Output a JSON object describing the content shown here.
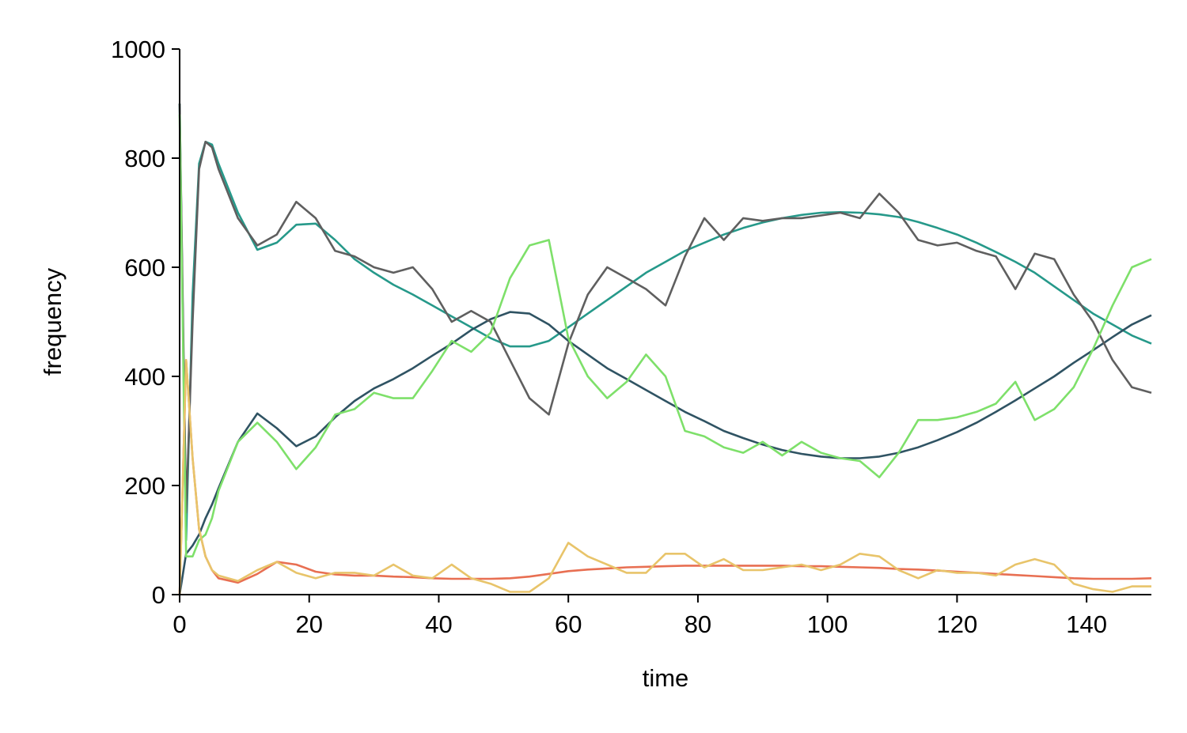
{
  "chart_data": {
    "type": "line",
    "xlabel": "time",
    "ylabel": "frequency",
    "x": [
      0,
      1,
      2,
      3,
      4,
      5,
      6,
      9,
      12,
      15,
      18,
      21,
      24,
      27,
      30,
      33,
      36,
      39,
      42,
      45,
      48,
      51,
      54,
      57,
      60,
      63,
      66,
      69,
      72,
      75,
      78,
      81,
      84,
      87,
      90,
      93,
      96,
      99,
      102,
      105,
      108,
      111,
      114,
      117,
      120,
      123,
      126,
      129,
      132,
      135,
      138,
      141,
      144,
      147,
      150
    ],
    "series": [
      {
        "color": "#26998a",
        "values": [
          900,
          100,
          550,
          790,
          830,
          825,
          790,
          700,
          632,
          645,
          678,
          680,
          650,
          615,
          590,
          568,
          550,
          530,
          510,
          490,
          470,
          455,
          455,
          465,
          490,
          515,
          540,
          565,
          590,
          610,
          630,
          645,
          660,
          672,
          682,
          690,
          696,
          700,
          701,
          700,
          697,
          692,
          683,
          672,
          660,
          645,
          628,
          610,
          590,
          565,
          540,
          515,
          495,
          475,
          460
        ]
      },
      {
        "color": "#2f5363",
        "values": [
          0,
          75,
          90,
          110,
          140,
          165,
          195,
          280,
          332,
          305,
          272,
          290,
          325,
          355,
          378,
          395,
          415,
          438,
          460,
          485,
          505,
          518,
          515,
          495,
          465,
          440,
          415,
          395,
          375,
          355,
          335,
          318,
          300,
          287,
          275,
          265,
          258,
          253,
          250,
          250,
          253,
          260,
          270,
          283,
          298,
          315,
          335,
          356,
          378,
          400,
          425,
          448,
          472,
          495,
          512
        ]
      },
      {
        "color": "#e86f52",
        "values": [
          0,
          430,
          250,
          120,
          70,
          45,
          30,
          22,
          38,
          60,
          55,
          42,
          37,
          35,
          35,
          33,
          32,
          30,
          29,
          29,
          29,
          30,
          33,
          38,
          43,
          46,
          48,
          50,
          51,
          52,
          53,
          53,
          53,
          53,
          53,
          53,
          52,
          52,
          51,
          50,
          49,
          47,
          46,
          44,
          42,
          40,
          38,
          36,
          34,
          32,
          30,
          29,
          29,
          29,
          30
        ]
      },
      {
        "color": "#5f5f5f",
        "values": [
          900,
          150,
          500,
          780,
          830,
          820,
          780,
          690,
          640,
          660,
          720,
          690,
          630,
          620,
          600,
          590,
          600,
          560,
          500,
          520,
          500,
          430,
          360,
          330,
          460,
          550,
          600,
          580,
          560,
          530,
          620,
          690,
          650,
          690,
          685,
          690,
          690,
          695,
          700,
          690,
          735,
          700,
          650,
          640,
          645,
          630,
          620,
          560,
          625,
          615,
          550,
          500,
          430,
          380,
          370
        ]
      },
      {
        "color": "#7ee06a",
        "values": [
          880,
          70,
          70,
          100,
          110,
          140,
          190,
          280,
          315,
          280,
          230,
          270,
          330,
          340,
          370,
          360,
          360,
          410,
          465,
          445,
          480,
          580,
          640,
          650,
          470,
          400,
          360,
          390,
          440,
          400,
          300,
          290,
          270,
          260,
          280,
          255,
          280,
          260,
          250,
          245,
          215,
          260,
          320,
          320,
          325,
          335,
          350,
          390,
          320,
          340,
          380,
          450,
          530,
          600,
          615
        ]
      },
      {
        "color": "#e8c46a",
        "values": [
          0,
          430,
          250,
          120,
          70,
          45,
          35,
          25,
          45,
          60,
          40,
          30,
          40,
          40,
          35,
          55,
          35,
          30,
          55,
          30,
          20,
          5,
          5,
          30,
          95,
          70,
          55,
          40,
          40,
          75,
          75,
          50,
          65,
          45,
          45,
          50,
          55,
          45,
          55,
          75,
          70,
          45,
          30,
          45,
          40,
          40,
          35,
          55,
          65,
          55,
          20,
          10,
          5,
          15,
          15
        ]
      }
    ],
    "xlim": [
      0,
      150
    ],
    "xticks": [
      0,
      20,
      40,
      60,
      80,
      100,
      120,
      140
    ],
    "ylim": [
      0,
      1000
    ],
    "yticks": [
      0,
      200,
      400,
      600,
      800,
      1000
    ]
  }
}
